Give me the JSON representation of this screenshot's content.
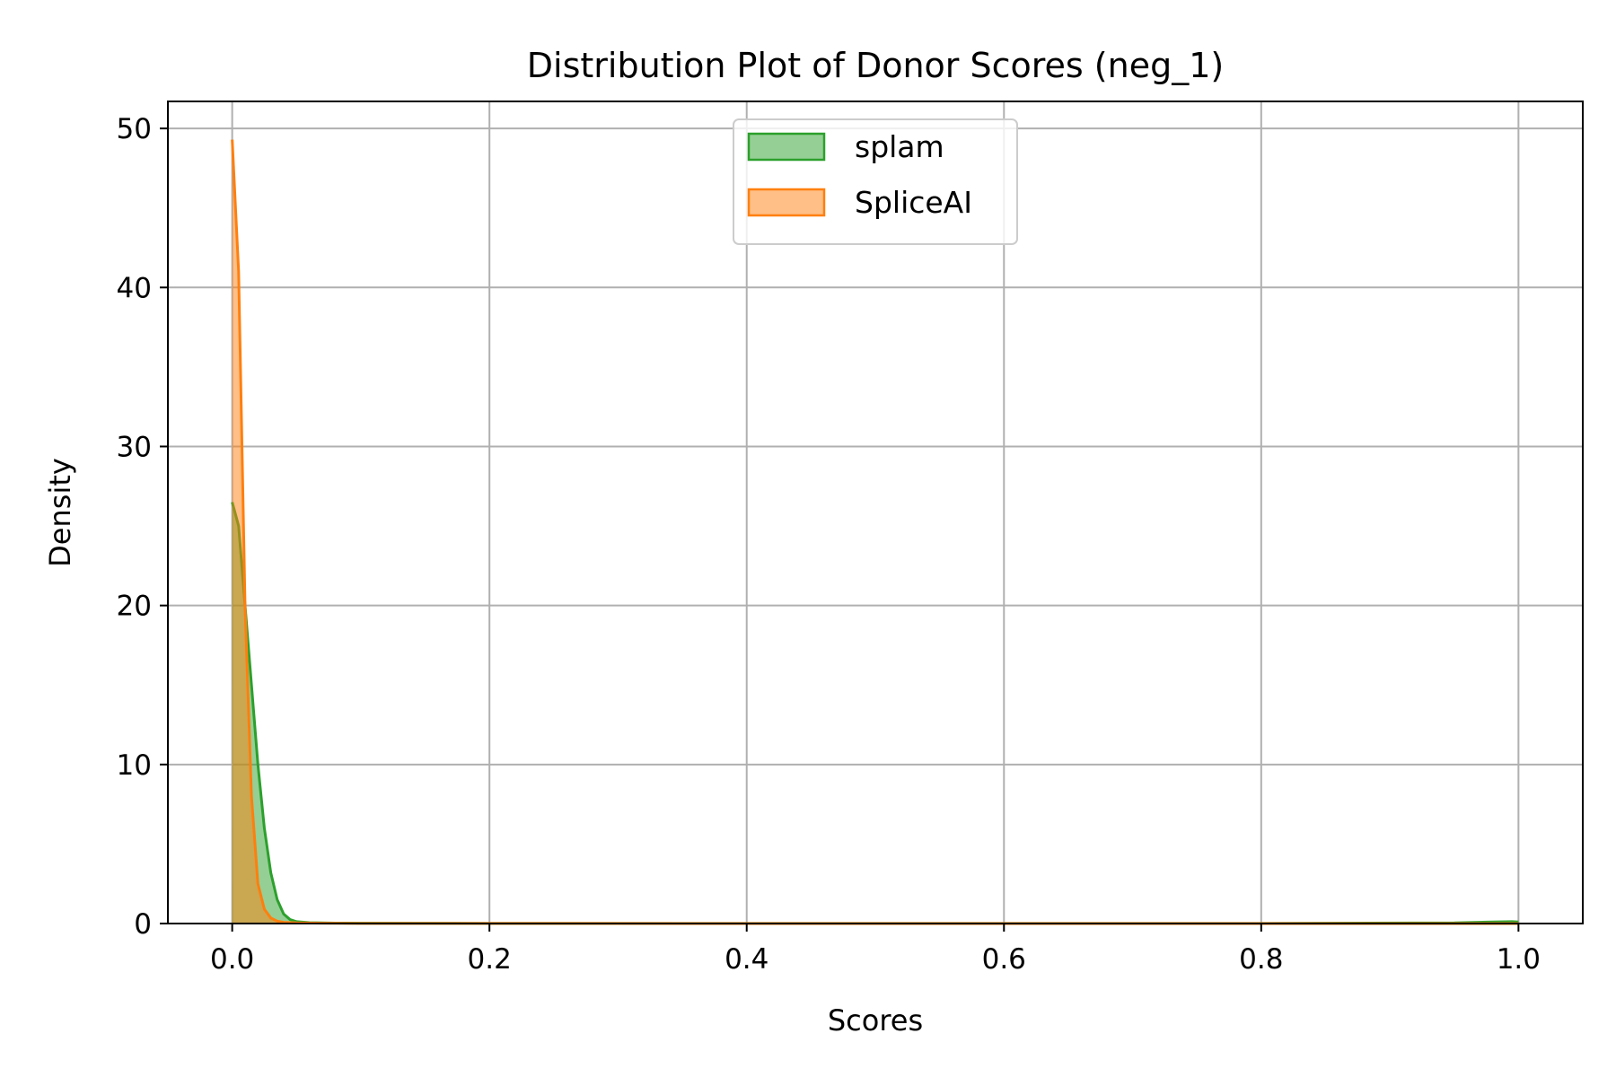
{
  "chart_data": {
    "type": "area",
    "title": "Distribution Plot of Donor Scores (neg_1)",
    "xlabel": "Scores",
    "ylabel": "Density",
    "xlim": [
      -0.05,
      1.05
    ],
    "ylim": [
      0,
      51.7
    ],
    "xticks": [
      0.0,
      0.2,
      0.4,
      0.6,
      0.8,
      1.0
    ],
    "xtick_labels": [
      "0.0",
      "0.2",
      "0.4",
      "0.6",
      "0.8",
      "1.0"
    ],
    "yticks": [
      0,
      10,
      20,
      30,
      40,
      50
    ],
    "ytick_labels": [
      "0",
      "10",
      "20",
      "30",
      "40",
      "50"
    ],
    "grid": true,
    "legend_position": "top-center",
    "series": [
      {
        "name": "splam",
        "color": "#2ca02c",
        "fill": "#2ca02c",
        "fill_opacity": 0.5,
        "x": [
          0.0,
          0.005,
          0.01,
          0.015,
          0.02,
          0.025,
          0.03,
          0.035,
          0.04,
          0.045,
          0.05,
          0.06,
          0.08,
          0.1,
          0.2,
          0.4,
          0.6,
          0.8,
          0.95,
          0.98,
          0.995,
          1.0
        ],
        "y": [
          26.5,
          25.0,
          20.0,
          15.0,
          10.0,
          6.0,
          3.2,
          1.5,
          0.6,
          0.25,
          0.12,
          0.06,
          0.03,
          0.02,
          0.01,
          0.005,
          0.005,
          0.01,
          0.04,
          0.1,
          0.12,
          0.1
        ]
      },
      {
        "name": "SpliceAI",
        "color": "#ff7f0e",
        "fill": "#ff7f0e",
        "fill_opacity": 0.5,
        "x": [
          0.0,
          0.005,
          0.01,
          0.015,
          0.02,
          0.025,
          0.03,
          0.035,
          0.04,
          0.05,
          0.07,
          0.1,
          0.2,
          0.4,
          0.6,
          0.8,
          1.0
        ],
        "y": [
          49.3,
          41.0,
          20.0,
          8.0,
          2.5,
          0.9,
          0.35,
          0.15,
          0.08,
          0.04,
          0.02,
          0.01,
          0.005,
          0.003,
          0.003,
          0.003,
          0.003
        ]
      }
    ]
  }
}
